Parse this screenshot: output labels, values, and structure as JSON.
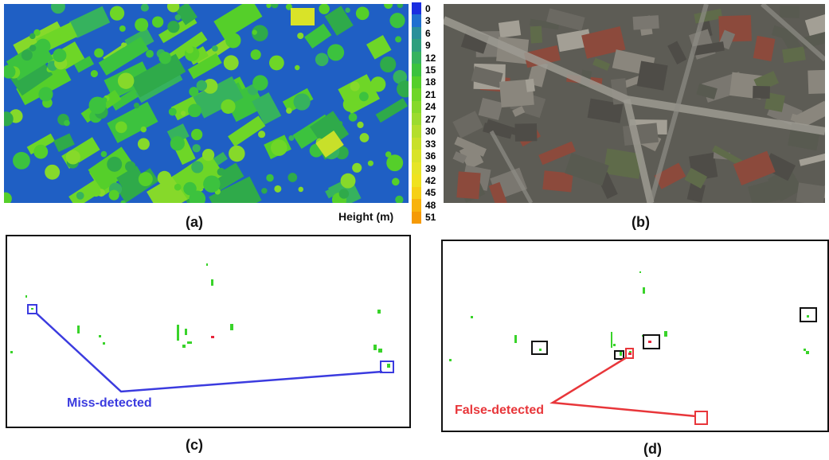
{
  "panels": {
    "a": {
      "caption": "(a)"
    },
    "b": {
      "caption": "(b)"
    },
    "c": {
      "caption": "(c)",
      "annotation": "Miss-detected",
      "annotation_color": "#3b3bdf"
    },
    "d": {
      "caption": "(d)",
      "annotation": "False-detected",
      "annotation_color": "#e8363a"
    }
  },
  "colorbar": {
    "title": "Height (m)",
    "ticks": [
      "0",
      "3",
      "6",
      "9",
      "12",
      "15",
      "18",
      "21",
      "24",
      "27",
      "30",
      "33",
      "36",
      "39",
      "42",
      "45",
      "48",
      "51"
    ],
    "colors": [
      "#1a2ee0",
      "#1f6fd0",
      "#2a8f9a",
      "#2f9f7e",
      "#36b25e",
      "#3cc23e",
      "#55cf2a",
      "#6ed627",
      "#86d92a",
      "#9cdb2e",
      "#b4de2c",
      "#c8e02a",
      "#d9e328",
      "#e6e526",
      "#f0e21f",
      "#f6d016",
      "#f8b30d",
      "#f59a06"
    ]
  }
}
